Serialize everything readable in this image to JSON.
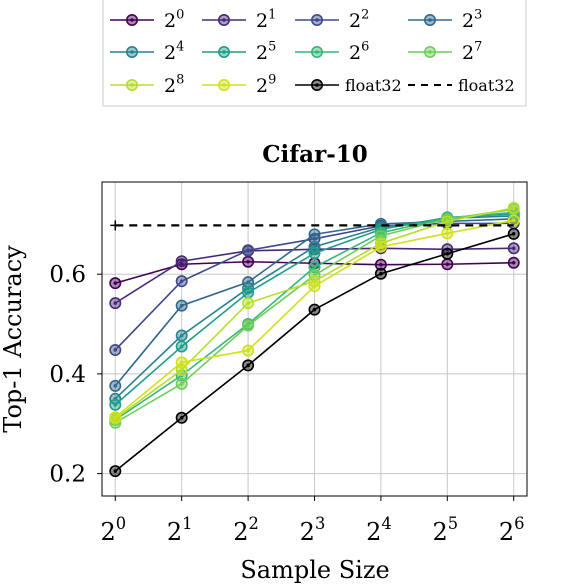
{
  "chart_data": {
    "type": "line",
    "title": "Cifar-10",
    "xlabel": "Sample Size",
    "ylabel": "Top-1 Accuracy",
    "x": [
      0,
      1,
      2,
      3,
      4,
      5,
      6
    ],
    "x_tick_labels": [
      {
        "base": "2",
        "exp": "0"
      },
      {
        "base": "2",
        "exp": "1"
      },
      {
        "base": "2",
        "exp": "2"
      },
      {
        "base": "2",
        "exp": "3"
      },
      {
        "base": "2",
        "exp": "4"
      },
      {
        "base": "2",
        "exp": "5"
      },
      {
        "base": "2",
        "exp": "6"
      }
    ],
    "xlim": [
      -0.2,
      6.2
    ],
    "ylim": [
      0.155,
      0.785
    ],
    "yticks": [
      0.2,
      0.4,
      0.6
    ],
    "y_tick_labels": [
      "0.2",
      "0.4",
      "0.6"
    ],
    "grid": true,
    "legend_placement": "top-center, outside plot area",
    "series": [
      {
        "name_base": "2",
        "name_exp": "0",
        "color": "#440154",
        "style": "solid",
        "values": [
          0.582,
          0.62,
          0.625,
          0.622,
          0.619,
          0.62,
          0.623
        ]
      },
      {
        "name_base": "2",
        "name_exp": "1",
        "color": "#482878",
        "style": "solid",
        "values": [
          0.542,
          0.626,
          0.647,
          0.65,
          0.652,
          0.65,
          0.652
        ]
      },
      {
        "name_base": "2",
        "name_exp": "2",
        "color": "#3e4989",
        "style": "solid",
        "values": [
          0.448,
          0.586,
          0.648,
          0.671,
          0.697,
          0.702,
          0.702
        ]
      },
      {
        "name_base": "2",
        "name_exp": "3",
        "color": "#31688e",
        "style": "solid",
        "values": [
          0.376,
          0.537,
          0.584,
          0.68,
          0.701,
          0.706,
          0.711
        ]
      },
      {
        "name_base": "2",
        "name_exp": "4",
        "color": "#26828e",
        "style": "solid",
        "values": [
          0.35,
          0.477,
          0.572,
          0.655,
          0.694,
          0.712,
          0.717
        ]
      },
      {
        "name_base": "2",
        "name_exp": "5",
        "color": "#1f9e89",
        "style": "solid",
        "values": [
          0.338,
          0.455,
          0.563,
          0.642,
          0.69,
          0.714,
          0.721
        ]
      },
      {
        "name_base": "2",
        "name_exp": "6",
        "color": "#35b779",
        "style": "solid",
        "values": [
          0.308,
          0.397,
          0.5,
          0.614,
          0.683,
          0.713,
          0.724
        ]
      },
      {
        "name_base": "2",
        "name_exp": "7",
        "color": "#6ece58",
        "style": "solid",
        "values": [
          0.302,
          0.38,
          0.497,
          0.598,
          0.677,
          0.711,
          0.73
        ]
      },
      {
        "name_base": "2",
        "name_exp": "8",
        "color": "#b5de2b",
        "style": "solid",
        "values": [
          0.31,
          0.408,
          0.542,
          0.586,
          0.662,
          0.706,
          0.733
        ]
      },
      {
        "name_base": "2",
        "name_exp": "9",
        "color": "#d0e11c",
        "style": "solid",
        "values": [
          0.313,
          0.423,
          0.447,
          0.576,
          0.655,
          0.682,
          0.708
        ]
      },
      {
        "name": "float32",
        "color": "#000000",
        "style": "solid",
        "values": [
          0.205,
          0.312,
          0.417,
          0.529,
          0.601,
          0.641,
          0.681
        ]
      },
      {
        "name": "float32",
        "color": "#000000",
        "style": "dashed",
        "values": [
          0.698,
          0.698,
          0.698,
          0.698,
          0.698,
          0.698,
          0.698
        ]
      }
    ]
  }
}
